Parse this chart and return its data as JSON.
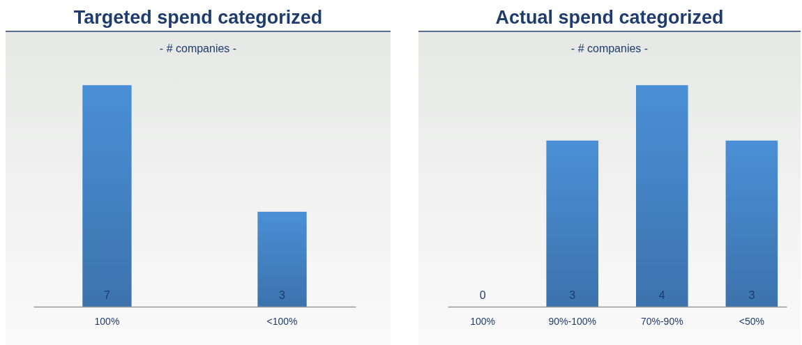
{
  "chart_data": [
    {
      "type": "bar",
      "title": "Targeted spend categorized",
      "subtitle": "- # companies -",
      "categories": [
        "100%",
        "<100%"
      ],
      "values": [
        7,
        3
      ],
      "color": "#4a8fd6",
      "data_labels": true
    },
    {
      "type": "bar",
      "title": "Actual spend categorized",
      "subtitle": "- # companies -",
      "categories": [
        "100%",
        "90%-100%",
        "70%-90%",
        "<50%"
      ],
      "values": [
        0,
        3,
        4,
        3
      ],
      "color": "#4a8fd6",
      "data_labels": true
    }
  ]
}
